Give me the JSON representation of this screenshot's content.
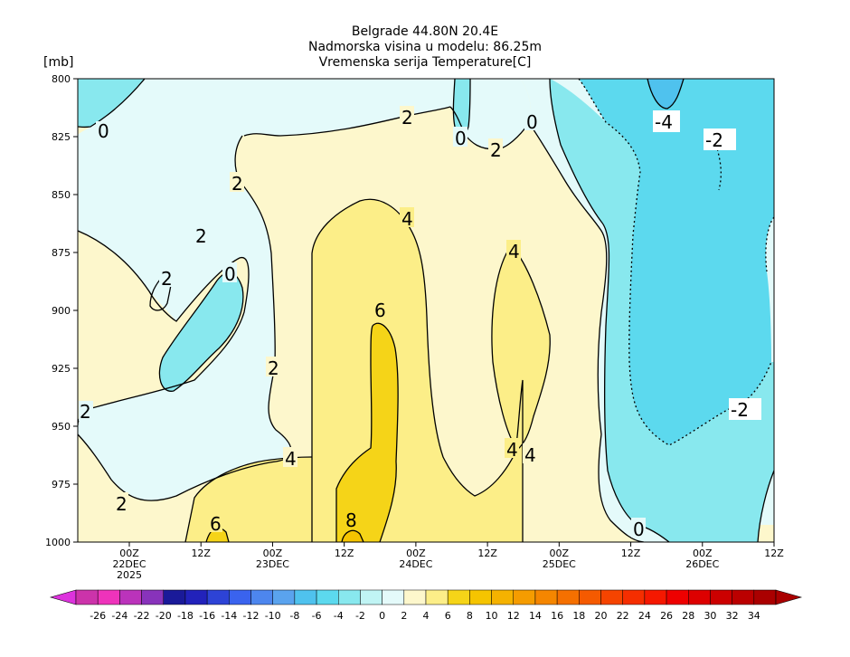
{
  "chart_data": {
    "type": "heatmap",
    "title_lines": [
      "Belgrade  44.80N 20.4E",
      "Nadmorska visina u modelu: 86.25m",
      "Vremenska serija Temperature[C]"
    ],
    "ylabel": "[mb]",
    "ylim": [
      1000,
      800
    ],
    "y_ticks": [
      "800",
      "825",
      "850",
      "875",
      "900",
      "925",
      "950",
      "975",
      "1000"
    ],
    "x_ticks": [
      {
        "label": "00Z",
        "date": "22DEC",
        "year": "2025"
      },
      {
        "label": "12Z",
        "date": "",
        "year": ""
      },
      {
        "label": "00Z",
        "date": "23DEC",
        "year": ""
      },
      {
        "label": "12Z",
        "date": "",
        "year": ""
      },
      {
        "label": "00Z",
        "date": "24DEC",
        "year": ""
      },
      {
        "label": "12Z",
        "date": "",
        "year": ""
      },
      {
        "label": "00Z",
        "date": "25DEC",
        "year": ""
      },
      {
        "label": "12Z",
        "date": "",
        "year": ""
      },
      {
        "label": "00Z",
        "date": "26DEC",
        "year": ""
      },
      {
        "label": "12Z",
        "date": "",
        "year": ""
      }
    ],
    "contour_labels": [
      "0",
      "2",
      "0",
      "0",
      "2",
      "2",
      "2",
      "4",
      "4",
      "0",
      "2",
      "6",
      "2",
      "2",
      "4",
      "4",
      "4",
      "6",
      "8",
      "2",
      "0",
      "-4",
      "-2",
      "-2"
    ],
    "colorbar": {
      "labels": [
        "-26",
        "-24",
        "-22",
        "-20",
        "-18",
        "-16",
        "-14",
        "-12",
        "-10",
        "-8",
        "-6",
        "-4",
        "-2",
        "0",
        "2",
        "4",
        "6",
        "8",
        "10",
        "12",
        "14",
        "16",
        "18",
        "20",
        "22",
        "24",
        "26",
        "28",
        "30",
        "32",
        "34"
      ],
      "colors": [
        "#cc33aa",
        "#ee33bb",
        "#bb33bb",
        "#8833bb",
        "#1a1a99",
        "#2222bb",
        "#2d43d6",
        "#3a63ee",
        "#4d86ee",
        "#5aa3ee",
        "#4fc2ee",
        "#5cd9ee",
        "#88e8ee",
        "#c0f4f4",
        "#e4fafa",
        "#fdf7cc",
        "#fcee88",
        "#f5d418",
        "#f5c400",
        "#f5b200",
        "#f59c00",
        "#f58600",
        "#f57000",
        "#f55a00",
        "#f54400",
        "#f52e00",
        "#f51800",
        "#ee0000",
        "#dd0000",
        "#cc0000",
        "#bb0000",
        "#aa0000"
      ],
      "low_arrow": "#dd33dd",
      "high_arrow": "#aa0000"
    }
  }
}
